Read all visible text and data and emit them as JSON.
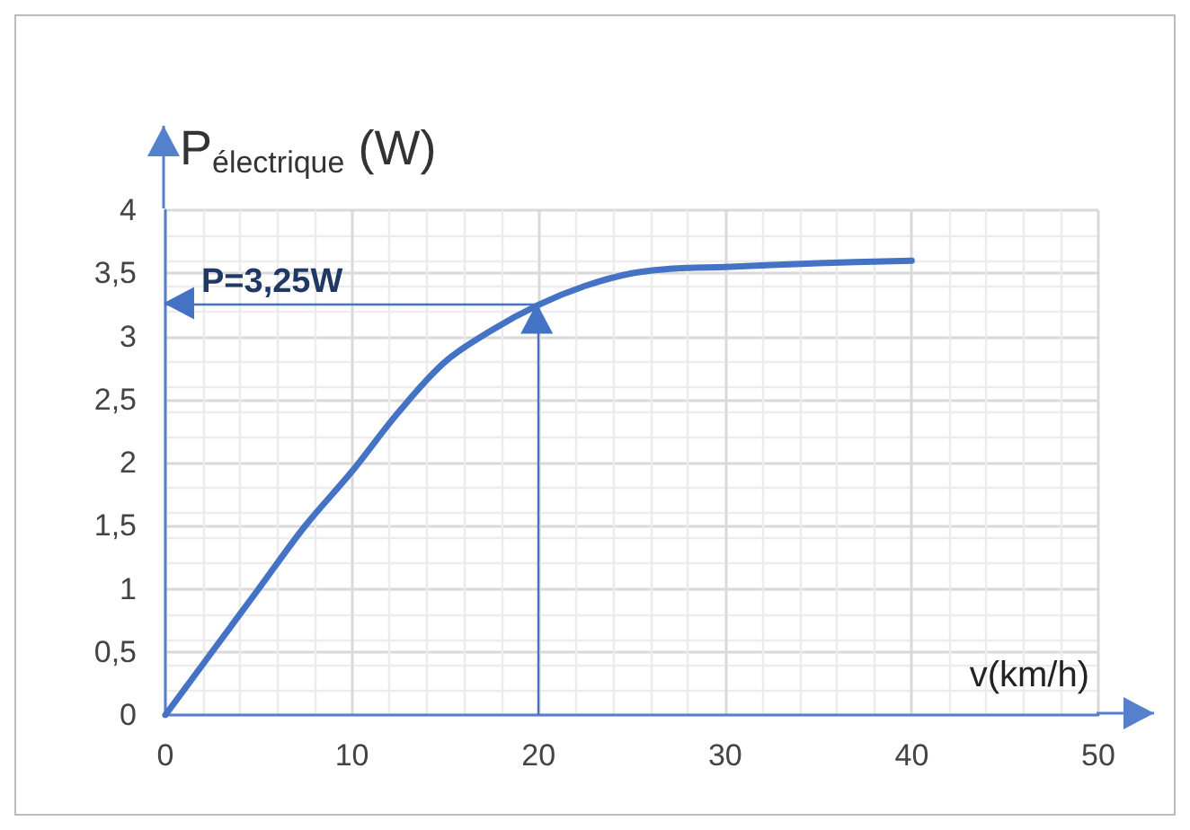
{
  "chart_data": {
    "type": "line",
    "ylabel": "P$_{électrique}$ (W)",
    "xlabel": "v(km/h)",
    "x": [
      0,
      2.5,
      5,
      7.5,
      10,
      12.5,
      15,
      17.5,
      20,
      22.5,
      25,
      27.5,
      30,
      35,
      40
    ],
    "series": [
      {
        "color": "#4472c4",
        "values": [
          0,
          0.5,
          1.0,
          1.5,
          1.93,
          2.4,
          2.8,
          3.05,
          3.25,
          3.4,
          3.5,
          3.54,
          3.55,
          3.58,
          3.6
        ]
      }
    ],
    "xlim": [
      0,
      50
    ],
    "xticks": [
      0,
      10,
      20,
      30,
      40,
      50
    ],
    "ylim": [
      0,
      4
    ],
    "yticks": [
      0,
      {
        "value": 0.5,
        "label": "0,5"
      },
      1,
      {
        "value": 1.5,
        "label": "1,5"
      },
      2,
      {
        "value": 2.5,
        "label": "2,5"
      },
      3,
      {
        "value": 3.5,
        "label": "3,5"
      },
      4
    ],
    "grid": true,
    "marker": "none",
    "line_style": "solid",
    "ref_lines": [
      {
        "axis": "x",
        "value": 20,
        "color": "#4472c4"
      },
      {
        "axis": "y",
        "value": 3.25,
        "label": "P=3,25W",
        "color": "#4472c4"
      }
    ]
  }
}
